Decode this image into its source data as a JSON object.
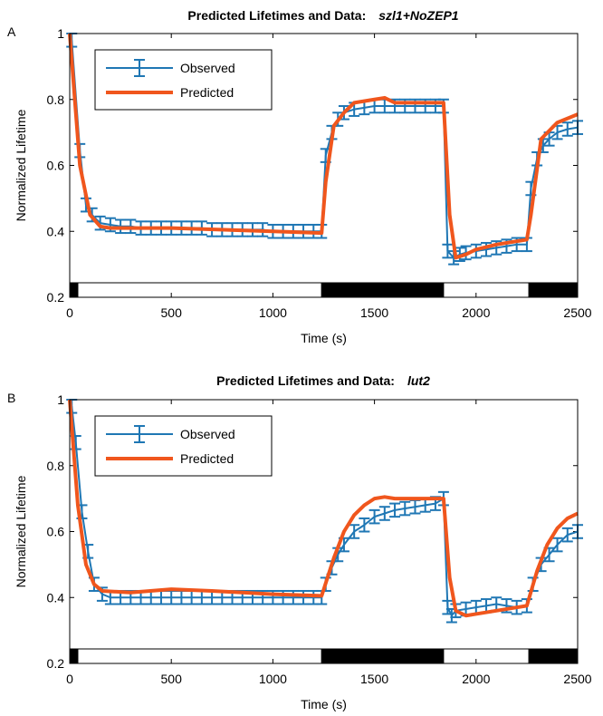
{
  "chart_data": [
    {
      "type": "line",
      "panel_label": "A",
      "title": "Predicted Lifetimes and Data:",
      "title_genotype": "szl1+NoZEP1",
      "xlabel": "Time (s)",
      "ylabel": "Normalized Lifetime",
      "xlim": [
        0,
        2500
      ],
      "xticks": [
        0,
        500,
        1000,
        1500,
        2000,
        2500
      ],
      "ylim": [
        0.2,
        1
      ],
      "yticks": [
        0.2,
        0.4,
        0.6,
        0.8,
        1
      ],
      "legend": "upper left",
      "light_bar": {
        "edges": [
          0,
          40,
          1240,
          1840,
          2260,
          2500
        ],
        "colors": [
          "#000000",
          "#ffffff",
          "#000000",
          "#ffffff",
          "#000000"
        ]
      },
      "series": [
        {
          "name": "Observed",
          "color": "#1f77b4",
          "error": 0.02,
          "x": [
            10,
            50,
            80,
            110,
            150,
            200,
            250,
            300,
            350,
            400,
            450,
            500,
            550,
            600,
            650,
            700,
            750,
            800,
            850,
            900,
            950,
            1000,
            1050,
            1100,
            1150,
            1200,
            1240,
            1260,
            1290,
            1320,
            1350,
            1400,
            1450,
            1500,
            1550,
            1600,
            1650,
            1700,
            1750,
            1800,
            1840,
            1860,
            1890,
            1920,
            1950,
            2000,
            2050,
            2100,
            2150,
            2200,
            2250,
            2270,
            2300,
            2330,
            2360,
            2400,
            2450,
            2500
          ],
          "values": [
            0.98,
            0.645,
            0.48,
            0.45,
            0.425,
            0.42,
            0.415,
            0.415,
            0.41,
            0.41,
            0.41,
            0.41,
            0.41,
            0.41,
            0.41,
            0.405,
            0.405,
            0.405,
            0.405,
            0.405,
            0.405,
            0.4,
            0.4,
            0.4,
            0.4,
            0.4,
            0.4,
            0.63,
            0.7,
            0.74,
            0.76,
            0.77,
            0.775,
            0.78,
            0.78,
            0.78,
            0.78,
            0.78,
            0.78,
            0.78,
            0.78,
            0.34,
            0.32,
            0.33,
            0.335,
            0.34,
            0.345,
            0.35,
            0.355,
            0.36,
            0.36,
            0.53,
            0.62,
            0.66,
            0.68,
            0.7,
            0.71,
            0.715
          ]
        },
        {
          "name": "Predicted",
          "color": "#f0561d",
          "x": [
            0,
            50,
            100,
            150,
            200,
            500,
            1000,
            1240,
            1260,
            1300,
            1350,
            1400,
            1500,
            1550,
            1600,
            1840,
            1870,
            1900,
            1950,
            2000,
            2100,
            2200,
            2250,
            2270,
            2320,
            2400,
            2500
          ],
          "values": [
            1.0,
            0.6,
            0.45,
            0.415,
            0.41,
            0.41,
            0.4,
            0.395,
            0.55,
            0.72,
            0.76,
            0.79,
            0.8,
            0.805,
            0.79,
            0.79,
            0.45,
            0.32,
            0.33,
            0.345,
            0.36,
            0.37,
            0.375,
            0.45,
            0.68,
            0.73,
            0.755
          ]
        }
      ]
    },
    {
      "type": "line",
      "panel_label": "B",
      "title": "Predicted Lifetimes and Data:",
      "title_genotype": "lut2",
      "xlabel": "Time (s)",
      "ylabel": "Normalized Lifetime",
      "xlim": [
        0,
        2500
      ],
      "xticks": [
        0,
        500,
        1000,
        1500,
        2000,
        2500
      ],
      "ylim": [
        0.2,
        1
      ],
      "yticks": [
        0.2,
        0.4,
        0.6,
        0.8,
        1
      ],
      "legend": "upper left",
      "light_bar": {
        "edges": [
          0,
          40,
          1240,
          1840,
          2260,
          2500
        ],
        "colors": [
          "#000000",
          "#ffffff",
          "#000000",
          "#ffffff",
          "#000000"
        ]
      },
      "series": [
        {
          "name": "Observed",
          "color": "#1f77b4",
          "error": 0.02,
          "x": [
            10,
            30,
            60,
            90,
            120,
            160,
            200,
            250,
            300,
            350,
            400,
            450,
            500,
            550,
            600,
            650,
            700,
            750,
            800,
            850,
            900,
            950,
            1000,
            1050,
            1100,
            1150,
            1200,
            1240,
            1260,
            1290,
            1320,
            1350,
            1400,
            1450,
            1500,
            1550,
            1600,
            1650,
            1700,
            1750,
            1800,
            1840,
            1860,
            1880,
            1900,
            1950,
            2000,
            2050,
            2100,
            2150,
            2200,
            2250,
            2280,
            2320,
            2360,
            2400,
            2450,
            2500
          ],
          "values": [
            0.98,
            0.87,
            0.66,
            0.54,
            0.44,
            0.41,
            0.4,
            0.4,
            0.4,
            0.4,
            0.4,
            0.4,
            0.4,
            0.4,
            0.4,
            0.4,
            0.4,
            0.4,
            0.4,
            0.4,
            0.4,
            0.4,
            0.4,
            0.4,
            0.4,
            0.4,
            0.4,
            0.4,
            0.44,
            0.49,
            0.53,
            0.56,
            0.6,
            0.62,
            0.645,
            0.655,
            0.665,
            0.67,
            0.675,
            0.68,
            0.685,
            0.7,
            0.37,
            0.345,
            0.36,
            0.365,
            0.37,
            0.375,
            0.38,
            0.375,
            0.37,
            0.375,
            0.44,
            0.5,
            0.53,
            0.56,
            0.59,
            0.6
          ]
        },
        {
          "name": "Predicted",
          "color": "#f0561d",
          "x": [
            0,
            40,
            80,
            120,
            160,
            300,
            500,
            700,
            1000,
            1240,
            1300,
            1350,
            1400,
            1450,
            1500,
            1550,
            1600,
            1840,
            1870,
            1900,
            1950,
            2000,
            2100,
            2200,
            2250,
            2300,
            2350,
            2400,
            2450,
            2500
          ],
          "values": [
            1.0,
            0.68,
            0.5,
            0.44,
            0.42,
            0.415,
            0.425,
            0.42,
            0.41,
            0.405,
            0.52,
            0.6,
            0.65,
            0.68,
            0.7,
            0.705,
            0.7,
            0.7,
            0.46,
            0.36,
            0.345,
            0.35,
            0.36,
            0.37,
            0.375,
            0.48,
            0.56,
            0.61,
            0.64,
            0.655
          ]
        }
      ]
    }
  ]
}
